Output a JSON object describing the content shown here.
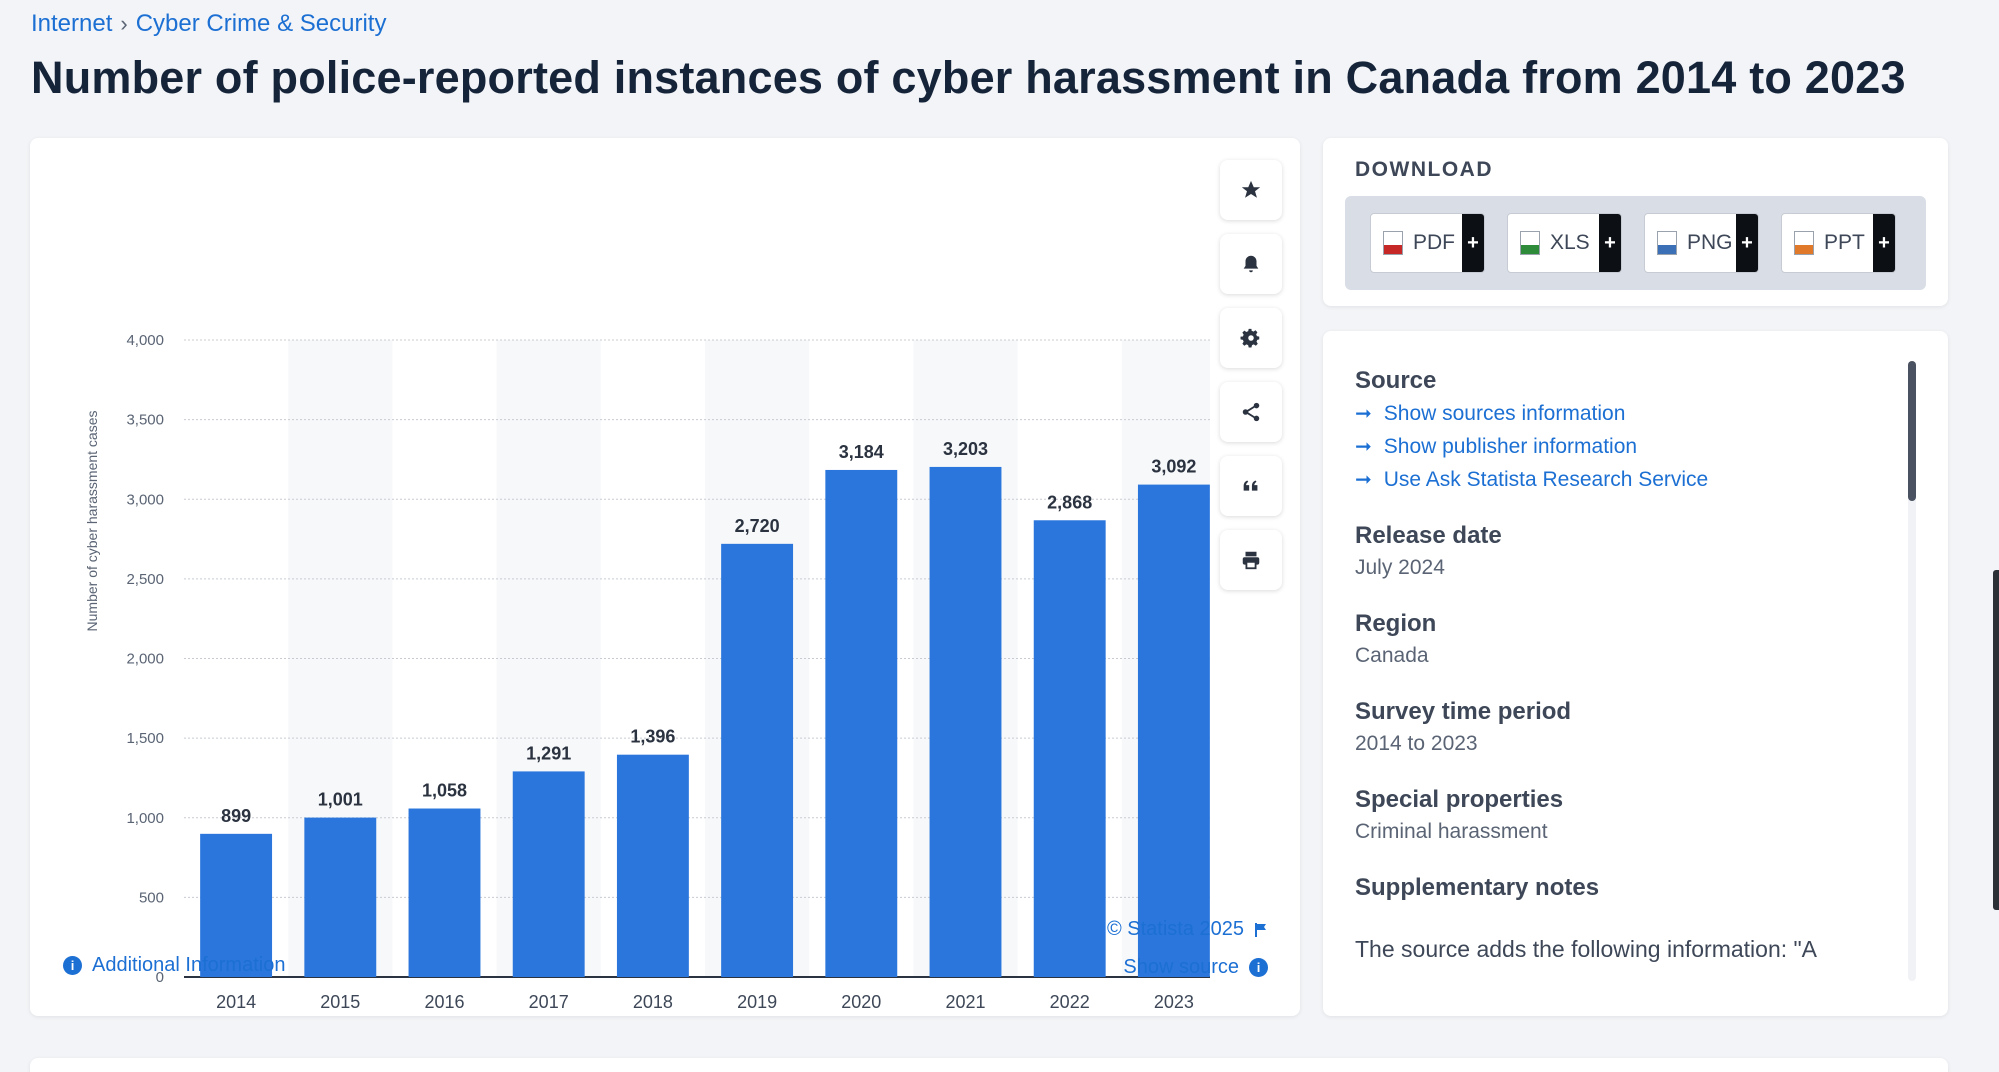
{
  "breadcrumb": {
    "items": [
      "Internet",
      "Cyber Crime & Security"
    ],
    "separator": "›"
  },
  "page": {
    "title": "Number of police-reported instances of cyber harassment in Canada from 2014 to 2023"
  },
  "chart_data": {
    "type": "bar",
    "title": "",
    "xlabel": "",
    "ylabel": "Number of cyber harassment cases",
    "categories": [
      "2014",
      "2015",
      "2016",
      "2017",
      "2018",
      "2019",
      "2020",
      "2021",
      "2022",
      "2023"
    ],
    "values": [
      899,
      1001,
      1058,
      1291,
      1396,
      2720,
      3184,
      3203,
      2868,
      3092
    ],
    "value_labels": [
      "899",
      "1,001",
      "1,058",
      "1,291",
      "1,396",
      "2,720",
      "3,184",
      "3,203",
      "2,868",
      "3,092"
    ],
    "ylim": [
      0,
      4000
    ],
    "yticks": [
      "0",
      "500",
      "1,000",
      "1,500",
      "2,000",
      "2,500",
      "3,000",
      "3,500",
      "4,000"
    ],
    "grid": true,
    "bar_color": "#2a76dd"
  },
  "chart_footer": {
    "additional_info": "Additional Information",
    "copyright": "© Statista 2025",
    "show_source": "Show source"
  },
  "toolbar": {
    "icons": [
      "star-icon",
      "bell-icon",
      "gear-icon",
      "share-icon",
      "quote-icon",
      "print-icon"
    ]
  },
  "download": {
    "title": "DOWNLOAD",
    "buttons": [
      {
        "label": "PDF",
        "color": "#c62828"
      },
      {
        "label": "XLS",
        "color": "#2e8b3a"
      },
      {
        "label": "PNG",
        "color": "#3b6fb6"
      },
      {
        "label": "PPT",
        "color": "#e07a2a"
      }
    ],
    "plus": "+"
  },
  "info": {
    "source_heading": "Source",
    "links": [
      "Show sources information",
      "Show publisher information",
      "Use Ask Statista Research Service"
    ],
    "release_heading": "Release date",
    "release_value": "July 2024",
    "region_heading": "Region",
    "region_value": "Canada",
    "survey_heading": "Survey time period",
    "survey_value": "2014 to 2023",
    "special_heading": "Special properties",
    "special_value": "Criminal harassment",
    "supp_heading": "Supplementary notes",
    "supp_text": "The source adds the following information: \"A"
  },
  "colors": {
    "accent": "#1c6fd3",
    "bar": "#2a76dd",
    "title": "#16243a"
  }
}
